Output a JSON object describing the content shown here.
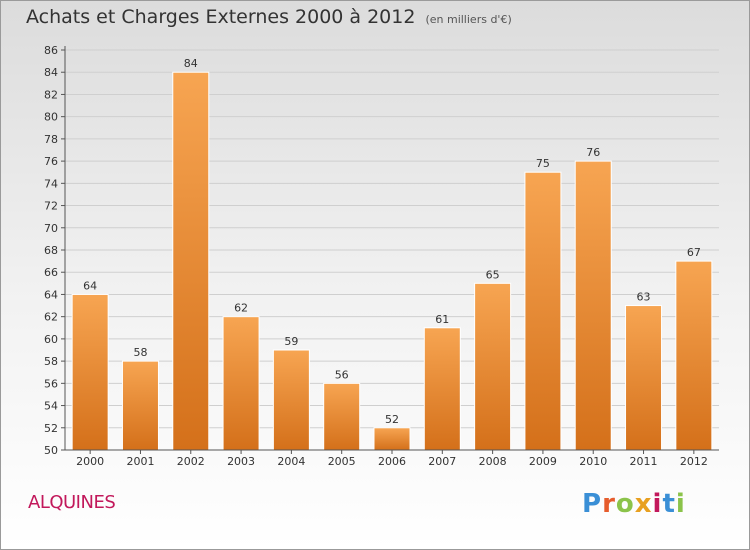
{
  "header": {
    "title": "Achats et Charges Externes 2000 à 2012",
    "subtitle": "(en milliers d'€)"
  },
  "footer": {
    "commune": "ALQUINES",
    "logo_letters": [
      "P",
      "r",
      "o",
      "x",
      "i",
      "t",
      "i"
    ],
    "logo_colors": [
      "#3a8fd6",
      "#e65c2c",
      "#8bc34a",
      "#e8a020",
      "#c2185b",
      "#3a8fd6",
      "#8bc34a"
    ]
  },
  "chart_data": {
    "type": "bar",
    "title": "Achats et Charges Externes 2000 à 2012",
    "subtitle": "(en milliers d'€)",
    "categories": [
      "2000",
      "2001",
      "2002",
      "2003",
      "2004",
      "2005",
      "2006",
      "2007",
      "2008",
      "2009",
      "2010",
      "2011",
      "2012"
    ],
    "values": [
      64,
      58,
      84,
      62,
      59,
      56,
      52,
      61,
      65,
      75,
      76,
      63,
      67
    ],
    "ylim": [
      50,
      86
    ],
    "yticks": [
      50,
      52,
      54,
      56,
      58,
      60,
      62,
      64,
      66,
      68,
      70,
      72,
      74,
      76,
      78,
      80,
      82,
      84,
      86
    ],
    "grid": true,
    "bar_color_light": "#f7a552",
    "bar_color_dark": "#d4701a",
    "xlabel": "",
    "ylabel": ""
  }
}
